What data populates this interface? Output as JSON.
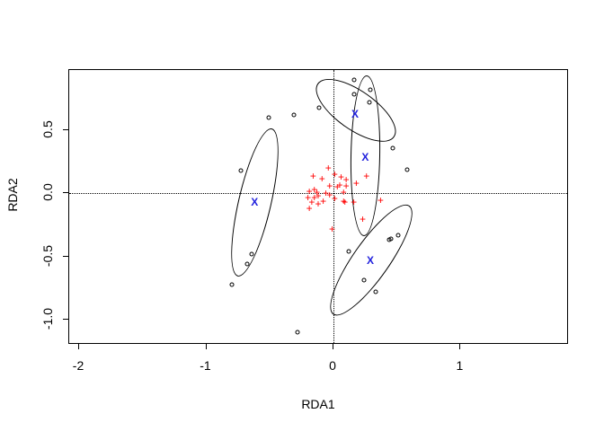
{
  "chart_data": {
    "type": "scatter",
    "title": "",
    "xlabel": "RDA1",
    "ylabel": "RDA2",
    "xlim": [
      -2.078,
      1.852
    ],
    "ylim": [
      -1.2,
      0.979
    ],
    "grid": false,
    "reference_lines": {
      "h": 0.0,
      "v": 0.0,
      "style": "dotted"
    },
    "x_ticks": [
      {
        "value": -2,
        "label": "-2"
      },
      {
        "value": -1,
        "label": "-1"
      },
      {
        "value": 0,
        "label": "0"
      },
      {
        "value": 1,
        "label": "1"
      }
    ],
    "y_ticks": [
      {
        "value": -1.0,
        "label": "-1.0"
      },
      {
        "value": -0.5,
        "label": "-0.5"
      },
      {
        "value": 0.0,
        "label": "0.0"
      },
      {
        "value": 0.5,
        "label": "0.5"
      }
    ],
    "series": [
      {
        "name": "sites",
        "marker": "circle",
        "color": "#000000",
        "points": [
          [
            0.16,
            0.9
          ],
          [
            0.29,
            0.82
          ],
          [
            0.16,
            0.79
          ],
          [
            0.28,
            0.72
          ],
          [
            -0.11,
            0.68
          ],
          [
            -0.31,
            0.62
          ],
          [
            -0.51,
            0.6
          ],
          [
            0.47,
            0.36
          ],
          [
            0.58,
            0.19
          ],
          [
            -0.73,
            0.18
          ],
          [
            -0.64,
            -0.48
          ],
          [
            -0.68,
            -0.56
          ],
          [
            -0.8,
            -0.72
          ],
          [
            0.44,
            -0.37
          ],
          [
            0.45,
            -0.36
          ],
          [
            0.51,
            -0.33
          ],
          [
            0.12,
            -0.46
          ],
          [
            0.24,
            -0.69
          ],
          [
            0.33,
            -0.78
          ],
          [
            -0.28,
            -1.1
          ]
        ]
      },
      {
        "name": "species",
        "marker": "plus",
        "color": "#ff0000",
        "points": [
          [
            -0.04,
            0.2
          ],
          [
            -0.16,
            0.14
          ],
          [
            0.01,
            0.15
          ],
          [
            -0.09,
            0.12
          ],
          [
            0.06,
            0.13
          ],
          [
            0.1,
            0.11
          ],
          [
            0.26,
            0.14
          ],
          [
            -0.19,
            0.02
          ],
          [
            -0.15,
            0.03
          ],
          [
            -0.03,
            0.06
          ],
          [
            0.03,
            0.05
          ],
          [
            0.05,
            0.07
          ],
          [
            0.1,
            0.06
          ],
          [
            0.18,
            0.08
          ],
          [
            -0.13,
            0.01
          ],
          [
            -0.06,
            0.0
          ],
          [
            -0.03,
            -0.01
          ],
          [
            0.08,
            0.01
          ],
          [
            0.01,
            -0.04
          ],
          [
            0.08,
            -0.06
          ],
          [
            0.09,
            -0.07
          ],
          [
            -0.2,
            -0.03
          ],
          [
            -0.15,
            -0.03
          ],
          [
            -0.12,
            -0.02
          ],
          [
            -0.17,
            -0.07
          ],
          [
            -0.12,
            -0.08
          ],
          [
            -0.08,
            -0.06
          ],
          [
            0.16,
            -0.07
          ],
          [
            0.37,
            -0.05
          ],
          [
            -0.19,
            -0.12
          ],
          [
            0.23,
            -0.2
          ],
          [
            -0.01,
            -0.28
          ]
        ]
      },
      {
        "name": "centroids",
        "marker": "X",
        "color": "#2222dd",
        "points": [
          [
            0.17,
            0.63
          ],
          [
            0.25,
            0.29
          ],
          [
            -0.62,
            -0.07
          ],
          [
            0.29,
            -0.53
          ]
        ]
      }
    ],
    "ellipses": [
      {
        "cx": -0.618,
        "cy": -0.069,
        "rx": 0.131,
        "ry": 0.602,
        "angle": 13
      },
      {
        "cx": 0.18,
        "cy": 0.657,
        "rx": 0.369,
        "ry": 0.156,
        "angle": 35
      },
      {
        "cx": 0.251,
        "cy": 0.296,
        "rx": 0.117,
        "ry": 0.639,
        "angle": 1
      },
      {
        "cx": 0.3,
        "cy": -0.525,
        "rx": 0.524,
        "ry": 0.146,
        "angle": -55
      }
    ],
    "marker_glyphs": {
      "plus": "+",
      "X": "X"
    }
  }
}
